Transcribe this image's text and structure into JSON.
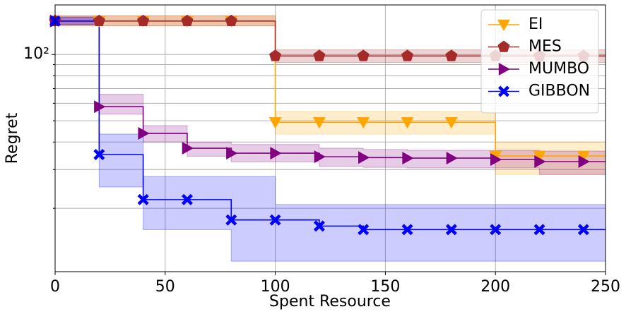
{
  "chart_data": {
    "type": "line",
    "xlabel": "Spent Resource",
    "ylabel": "Regret",
    "x": [
      0,
      20,
      40,
      60,
      80,
      100,
      120,
      140,
      160,
      180,
      200,
      220,
      240
    ],
    "xlim": [
      0,
      250
    ],
    "xticks": [
      0,
      50,
      100,
      150,
      200,
      250
    ],
    "ylim": [
      10.3,
      168
    ],
    "yscale": "log",
    "yticks": [
      {
        "value": 100,
        "label": "10²"
      }
    ],
    "yminorticks": [
      20,
      30,
      40,
      50,
      60,
      70,
      80,
      90
    ],
    "grid": true,
    "legend": "upper right",
    "series": [
      {
        "name": "EI",
        "color": "#ffa500",
        "marker": "triangle-down",
        "values": [
          142,
          142,
          142,
          142,
          142,
          49.2,
          49.2,
          49.2,
          49.2,
          49.2,
          34.6,
          34.6,
          34.6
        ],
        "upper": [
          150,
          150,
          150,
          150,
          150,
          55,
          55,
          55,
          55,
          55,
          40,
          40,
          40
        ],
        "lower": [
          135,
          135,
          135,
          135,
          135,
          43.5,
          43.5,
          43.5,
          43.5,
          43.5,
          28.5,
          28.5,
          28.5
        ]
      },
      {
        "name": "MES",
        "color": "#a52a2a",
        "marker": "pentagon",
        "values": [
          142,
          142,
          142,
          142,
          142,
          98.5,
          98.5,
          98.5,
          98.5,
          98.5,
          98.5,
          98.5,
          98.5
        ],
        "upper": [
          150,
          150,
          150,
          150,
          150,
          105,
          105,
          105,
          105,
          105,
          105,
          105,
          105
        ],
        "lower": [
          135,
          135,
          135,
          135,
          135,
          92,
          92,
          92,
          92,
          92,
          92,
          92,
          92
        ]
      },
      {
        "name": "MUMBO",
        "color": "#800080",
        "marker": "triangle-right",
        "values": [
          142,
          57.9,
          43.8,
          37.5,
          35.6,
          35.6,
          34.3,
          34,
          33.8,
          33.8,
          33.3,
          32.6,
          32.6
        ],
        "upper": [
          148,
          66,
          47.5,
          40,
          39,
          39,
          37.5,
          37,
          36.7,
          36.7,
          36.7,
          36.4,
          36.4
        ],
        "lower": [
          137,
          53.5,
          40,
          34.5,
          32.5,
          32.5,
          31,
          30.7,
          30.5,
          30.5,
          30.5,
          28.5,
          28.5
        ]
      },
      {
        "name": "GIBBON",
        "color": "#0000ff",
        "marker": "x",
        "values": [
          142,
          35.1,
          21.9,
          21.9,
          17.7,
          17.7,
          16.6,
          16,
          16,
          16,
          16,
          16,
          16
        ],
        "upper": [
          148,
          43.5,
          27.9,
          27.9,
          27.9,
          20.8,
          20.8,
          20.8,
          20.8,
          20.8,
          20.8,
          20.8,
          20.8
        ],
        "lower": [
          137,
          25,
          16,
          16,
          11.5,
          11.5,
          11.5,
          11.5,
          11.5,
          11.5,
          11.5,
          11.5,
          11.5
        ]
      }
    ]
  }
}
